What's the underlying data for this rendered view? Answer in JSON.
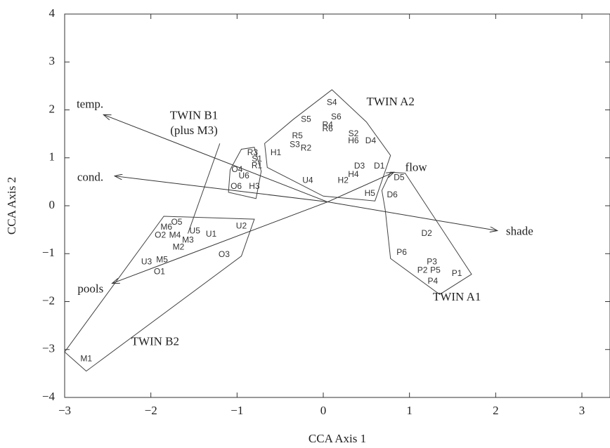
{
  "chart_data": {
    "type": "scatter",
    "xlabel": "CCA Axis 1",
    "ylabel": "CCA Axis 2",
    "xlim": [
      -3,
      3
    ],
    "ylim": [
      -4,
      4
    ],
    "x_ticks": [
      "−3",
      "−2",
      "−1",
      "0",
      "1",
      "2",
      "3"
    ],
    "y_ticks": [
      "−4",
      "−3",
      "−2",
      "−1",
      "0",
      "1",
      "2",
      "3",
      "4"
    ],
    "grid": false,
    "sites": [
      {
        "label": "S4",
        "x": 0.1,
        "y": 2.15
      },
      {
        "label": "S5",
        "x": -0.2,
        "y": 1.8
      },
      {
        "label": "S6",
        "x": 0.15,
        "y": 1.85
      },
      {
        "label": "R4",
        "x": 0.05,
        "y": 1.68
      },
      {
        "label": "R6",
        "x": 0.05,
        "y": 1.6
      },
      {
        "label": "S2",
        "x": 0.35,
        "y": 1.5
      },
      {
        "label": "H6",
        "x": 0.35,
        "y": 1.35
      },
      {
        "label": "D4",
        "x": 0.55,
        "y": 1.35
      },
      {
        "label": "R5",
        "x": -0.3,
        "y": 1.45
      },
      {
        "label": "S3",
        "x": -0.33,
        "y": 1.27
      },
      {
        "label": "R2",
        "x": -0.2,
        "y": 1.2
      },
      {
        "label": "H1",
        "x": -0.55,
        "y": 1.1
      },
      {
        "label": "R3",
        "x": -0.82,
        "y": 1.1
      },
      {
        "label": "S1",
        "x": -0.77,
        "y": 0.97
      },
      {
        "label": "R1",
        "x": -0.77,
        "y": 0.83
      },
      {
        "label": "O4",
        "x": -1.0,
        "y": 0.75
      },
      {
        "label": "U6",
        "x": -0.92,
        "y": 0.62
      },
      {
        "label": "O6",
        "x": -1.01,
        "y": 0.4
      },
      {
        "label": "H3",
        "x": -0.8,
        "y": 0.4
      },
      {
        "label": "U4",
        "x": -0.18,
        "y": 0.52
      },
      {
        "label": "D3",
        "x": 0.42,
        "y": 0.82
      },
      {
        "label": "D1",
        "x": 0.65,
        "y": 0.82
      },
      {
        "label": "H4",
        "x": 0.35,
        "y": 0.65
      },
      {
        "label": "H2",
        "x": 0.23,
        "y": 0.52
      },
      {
        "label": "H5",
        "x": 0.54,
        "y": 0.25
      },
      {
        "label": "D5",
        "x": 0.88,
        "y": 0.58
      },
      {
        "label": "D6",
        "x": 0.8,
        "y": 0.22
      },
      {
        "label": "D2",
        "x": 1.2,
        "y": -0.58
      },
      {
        "label": "P6",
        "x": 0.91,
        "y": -0.98
      },
      {
        "label": "P3",
        "x": 1.26,
        "y": -1.18
      },
      {
        "label": "P2",
        "x": 1.15,
        "y": -1.35
      },
      {
        "label": "P5",
        "x": 1.3,
        "y": -1.35
      },
      {
        "label": "P1",
        "x": 1.55,
        "y": -1.42
      },
      {
        "label": "P4",
        "x": 1.27,
        "y": -1.58
      },
      {
        "label": "O5",
        "x": -1.7,
        "y": -0.35
      },
      {
        "label": "M6",
        "x": -1.82,
        "y": -0.45
      },
      {
        "label": "U5",
        "x": -1.49,
        "y": -0.53
      },
      {
        "label": "U1",
        "x": -1.3,
        "y": -0.6
      },
      {
        "label": "U2",
        "x": -0.95,
        "y": -0.43
      },
      {
        "label": "O2",
        "x": -1.89,
        "y": -0.62
      },
      {
        "label": "M4",
        "x": -1.72,
        "y": -0.62
      },
      {
        "label": "M3",
        "x": -1.57,
        "y": -0.72
      },
      {
        "label": "M2",
        "x": -1.68,
        "y": -0.87
      },
      {
        "label": "O3",
        "x": -1.15,
        "y": -1.02
      },
      {
        "label": "U3",
        "x": -2.05,
        "y": -1.18
      },
      {
        "label": "M5",
        "x": -1.87,
        "y": -1.13
      },
      {
        "label": "O1",
        "x": -1.9,
        "y": -1.38
      },
      {
        "label": "M1",
        "x": -2.75,
        "y": -3.2
      }
    ],
    "vectors": [
      {
        "label": "temp.",
        "x": -2.55,
        "y": 1.9,
        "label_x": -2.55,
        "label_y": 2.1,
        "anchor": "end"
      },
      {
        "label": "cond.",
        "x": -2.42,
        "y": 0.62,
        "label_x": -2.55,
        "label_y": 0.58,
        "anchor": "end"
      },
      {
        "label": "flow",
        "x": 0.82,
        "y": 0.7,
        "label_x": 0.95,
        "label_y": 0.78,
        "anchor": "start"
      },
      {
        "label": "shade",
        "x": 2.02,
        "y": -0.52,
        "label_x": 2.12,
        "label_y": -0.55,
        "anchor": "start"
      },
      {
        "label": "pools",
        "x": -2.45,
        "y": -1.62,
        "label_x": -2.55,
        "label_y": -1.75,
        "anchor": "end"
      }
    ],
    "vector_origin": [
      0.05,
      0.08
    ],
    "groups": [
      {
        "label": "TWIN A2",
        "label_x": 0.78,
        "label_y": 2.15,
        "hull": [
          [
            0.1,
            2.42
          ],
          [
            0.5,
            1.75
          ],
          [
            0.78,
            1.05
          ],
          [
            0.6,
            0.1
          ],
          [
            0.0,
            0.2
          ],
          [
            -0.65,
            0.8
          ],
          [
            -0.68,
            1.3
          ],
          [
            -0.35,
            1.8
          ]
        ]
      },
      {
        "label": "TWIN A1",
        "label_x": 1.55,
        "label_y": -1.92,
        "hull": [
          [
            0.95,
            0.68
          ],
          [
            0.78,
            0.7
          ],
          [
            0.68,
            0.32
          ],
          [
            0.72,
            -0.1
          ],
          [
            0.78,
            -1.1
          ],
          [
            1.35,
            -1.85
          ],
          [
            1.72,
            -1.43
          ]
        ]
      },
      {
        "label": "TWIN B1",
        "label_x": -1.5,
        "label_y": 1.87,
        "sublabel": "(plus M3)",
        "sublabel_y": 1.55,
        "hull": [
          [
            -0.95,
            1.18
          ],
          [
            -0.8,
            1.22
          ],
          [
            -0.72,
            0.72
          ],
          [
            -0.78,
            0.15
          ],
          [
            -1.1,
            0.28
          ],
          [
            -1.08,
            0.75
          ]
        ]
      },
      {
        "label": "TWIN B2",
        "label_x": -1.95,
        "label_y": -2.85,
        "hull": [
          [
            -1.85,
            -0.22
          ],
          [
            -0.8,
            -0.28
          ],
          [
            -0.95,
            -1.05
          ],
          [
            -2.75,
            -3.45
          ],
          [
            -3.0,
            -3.05
          ]
        ]
      }
    ],
    "connector": {
      "label": "TWIN B1",
      "from": [
        -1.2,
        1.3
      ],
      "to": [
        -1.57,
        -0.58
      ]
    }
  }
}
